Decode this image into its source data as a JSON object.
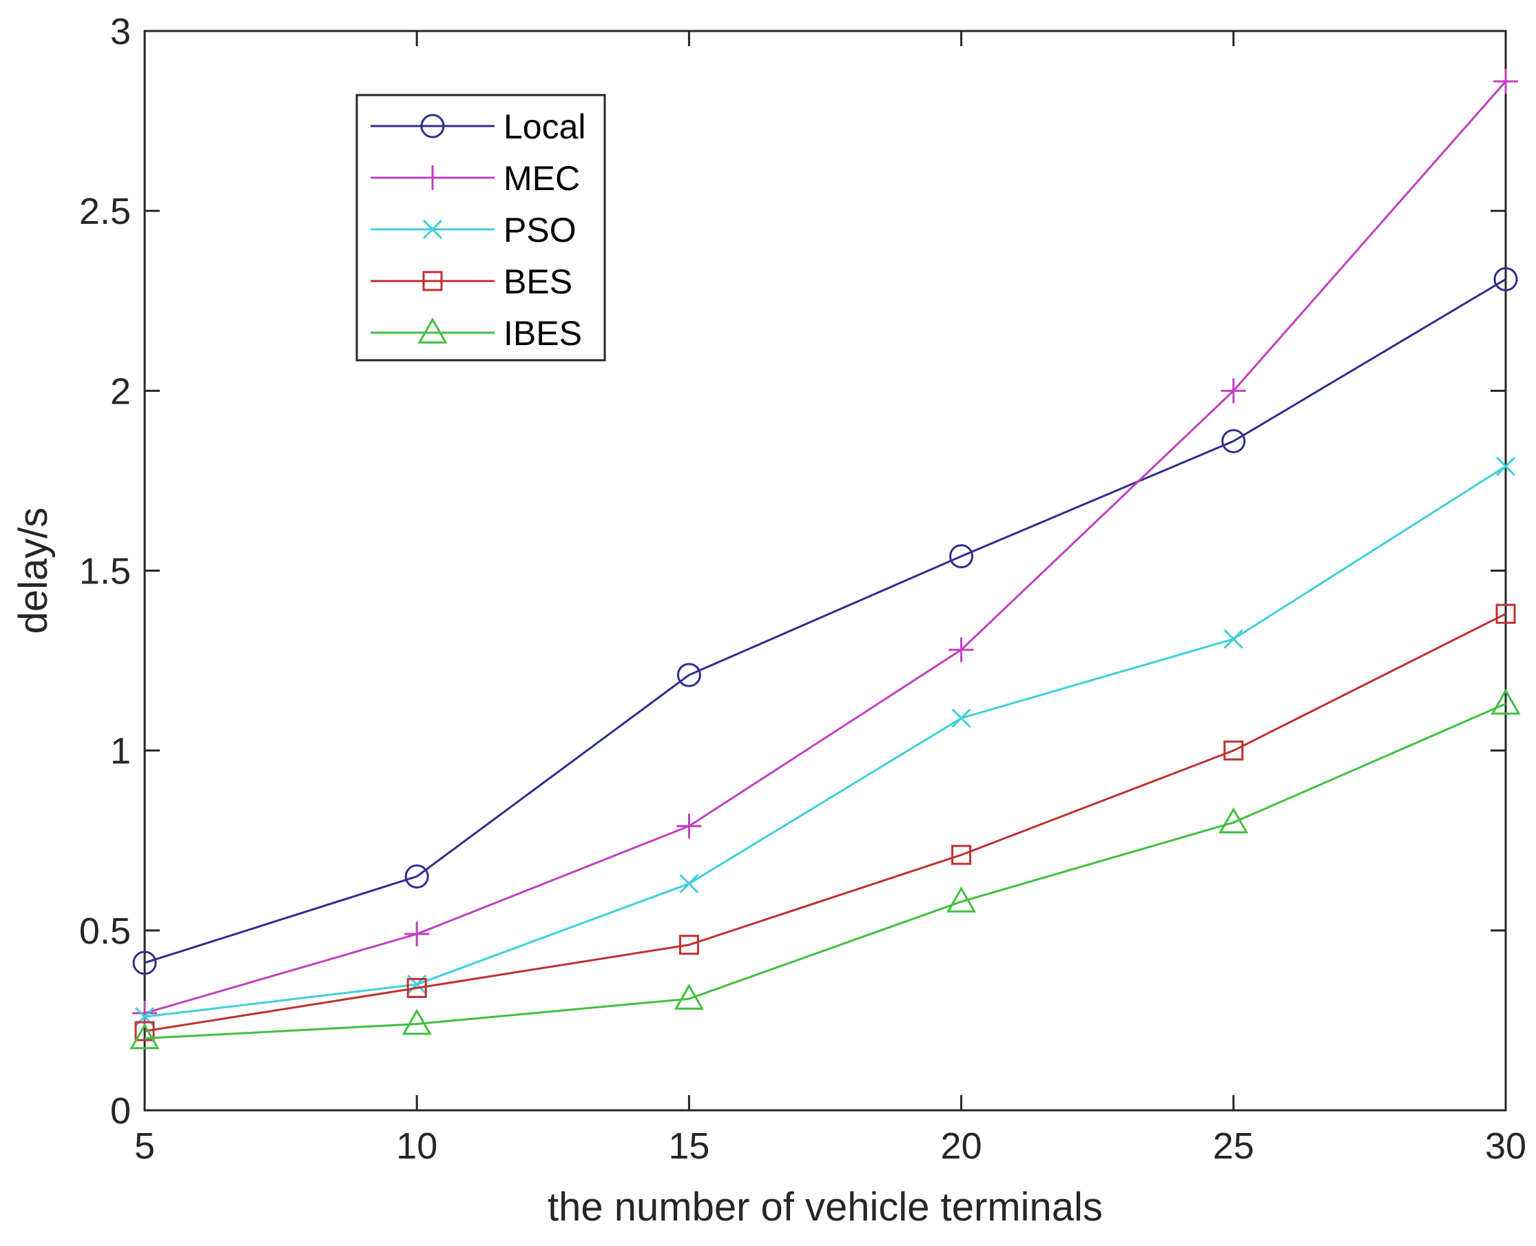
{
  "chart_data": {
    "type": "line",
    "title": "",
    "xlabel": "the number of vehicle terminals",
    "ylabel": "delay/s",
    "xlim": [
      5,
      30
    ],
    "ylim": [
      0,
      3
    ],
    "x": [
      5,
      10,
      15,
      20,
      25,
      30
    ],
    "xticks": [
      5,
      10,
      15,
      20,
      25,
      30
    ],
    "yticks": [
      0,
      0.5,
      1,
      1.5,
      2,
      2.5,
      3
    ],
    "xtick_labels": [
      "5",
      "10",
      "15",
      "20",
      "25",
      "30"
    ],
    "ytick_labels": [
      "0",
      "0.5",
      "1",
      "1.5",
      "2",
      "2.5",
      "3"
    ],
    "grid": false,
    "legend_position": "top-left",
    "series": [
      {
        "name": "Local",
        "color": "#2e2e8f",
        "marker": "circle",
        "values": [
          0.41,
          0.65,
          1.21,
          1.54,
          1.86,
          2.31
        ]
      },
      {
        "name": "MEC",
        "color": "#c040c0",
        "marker": "plus",
        "values": [
          0.27,
          0.49,
          0.79,
          1.28,
          2.0,
          2.86
        ]
      },
      {
        "name": "PSO",
        "color": "#40d0d8",
        "marker": "x",
        "values": [
          0.26,
          0.35,
          0.63,
          1.09,
          1.31,
          1.79
        ]
      },
      {
        "name": "BES",
        "color": "#c03030",
        "marker": "square",
        "values": [
          0.22,
          0.34,
          0.46,
          0.71,
          1.0,
          1.38
        ]
      },
      {
        "name": "IBES",
        "color": "#40c040",
        "marker": "triangle",
        "values": [
          0.2,
          0.24,
          0.31,
          0.58,
          0.8,
          1.13
        ]
      }
    ]
  }
}
